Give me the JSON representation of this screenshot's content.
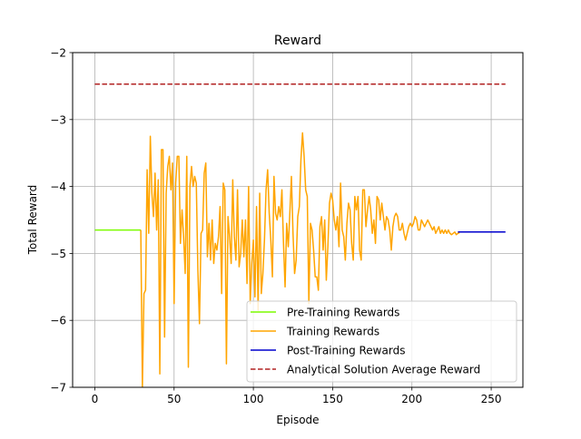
{
  "chart_data": {
    "type": "line",
    "title": "Reward",
    "xlabel": "Episode",
    "ylabel": "Total Reward",
    "xlim": [
      -14,
      270
    ],
    "ylim": [
      -7,
      -2
    ],
    "xticks": [
      0,
      50,
      100,
      150,
      200,
      250
    ],
    "yticks": [
      -2,
      -3,
      -4,
      -5,
      -6,
      -7
    ],
    "xtick_labels": [
      "0",
      "50",
      "100",
      "150",
      "200",
      "250"
    ],
    "ytick_labels": [
      "−2",
      "−3",
      "−4",
      "−5",
      "−6",
      "−7"
    ],
    "grid": true,
    "legend_position": "lower-right",
    "series": [
      {
        "name": "Pre-Training Rewards",
        "color": "#7cfc00",
        "style": "solid",
        "points": [
          [
            0,
            -4.65
          ],
          [
            29,
            -4.65
          ]
        ]
      },
      {
        "name": "Training Rewards",
        "color": "#ffa500",
        "style": "solid",
        "points": [
          [
            29,
            -4.65
          ],
          [
            30,
            -7.0
          ],
          [
            31,
            -5.6
          ],
          [
            32,
            -5.55
          ],
          [
            33,
            -3.75
          ],
          [
            34,
            -4.7
          ],
          [
            35,
            -3.25
          ],
          [
            36,
            -4.1
          ],
          [
            37,
            -4.45
          ],
          [
            38,
            -3.8
          ],
          [
            39,
            -4.65
          ],
          [
            40,
            -3.9
          ],
          [
            41,
            -6.8
          ],
          [
            42,
            -3.45
          ],
          [
            43,
            -3.45
          ],
          [
            44,
            -6.25
          ],
          [
            45,
            -4.1
          ],
          [
            46,
            -3.7
          ],
          [
            47,
            -3.55
          ],
          [
            48,
            -4.05
          ],
          [
            49,
            -3.65
          ],
          [
            50,
            -5.75
          ],
          [
            51,
            -3.95
          ],
          [
            52,
            -3.55
          ],
          [
            53,
            -3.55
          ],
          [
            54,
            -4.85
          ],
          [
            55,
            -4.35
          ],
          [
            56,
            -4.75
          ],
          [
            57,
            -5.3
          ],
          [
            58,
            -3.55
          ],
          [
            59,
            -6.7
          ],
          [
            60,
            -4.0
          ],
          [
            61,
            -3.7
          ],
          [
            62,
            -4.0
          ],
          [
            63,
            -3.85
          ],
          [
            64,
            -3.95
          ],
          [
            65,
            -5.25
          ],
          [
            66,
            -6.05
          ],
          [
            67,
            -4.7
          ],
          [
            68,
            -4.65
          ],
          [
            69,
            -3.8
          ],
          [
            70,
            -3.65
          ],
          [
            71,
            -5.05
          ],
          [
            72,
            -4.55
          ],
          [
            73,
            -5.1
          ],
          [
            74,
            -4.5
          ],
          [
            75,
            -5.15
          ],
          [
            76,
            -4.85
          ],
          [
            77,
            -4.95
          ],
          [
            78,
            -4.75
          ],
          [
            79,
            -4.3
          ],
          [
            80,
            -5.6
          ],
          [
            81,
            -3.95
          ],
          [
            82,
            -4.05
          ],
          [
            83,
            -6.65
          ],
          [
            84,
            -4.45
          ],
          [
            85,
            -4.75
          ],
          [
            86,
            -5.15
          ],
          [
            87,
            -3.9
          ],
          [
            88,
            -4.75
          ],
          [
            89,
            -5.1
          ],
          [
            90,
            -4.05
          ],
          [
            91,
            -5.2
          ],
          [
            92,
            -5.0
          ],
          [
            93,
            -4.5
          ],
          [
            94,
            -5.05
          ],
          [
            95,
            -4.5
          ],
          [
            96,
            -5.45
          ],
          [
            97,
            -4.0
          ],
          [
            98,
            -5.75
          ],
          [
            99,
            -5.15
          ],
          [
            100,
            -4.8
          ],
          [
            101,
            -5.65
          ],
          [
            102,
            -4.3
          ],
          [
            103,
            -5.85
          ],
          [
            104,
            -4.1
          ],
          [
            105,
            -5.6
          ],
          [
            106,
            -5.3
          ],
          [
            107,
            -4.8
          ],
          [
            108,
            -4.05
          ],
          [
            109,
            -3.75
          ],
          [
            110,
            -4.4
          ],
          [
            111,
            -4.8
          ],
          [
            112,
            -5.35
          ],
          [
            113,
            -3.85
          ],
          [
            114,
            -4.4
          ],
          [
            115,
            -4.5
          ],
          [
            116,
            -4.3
          ],
          [
            117,
            -4.45
          ],
          [
            118,
            -4.05
          ],
          [
            119,
            -4.85
          ],
          [
            120,
            -5.5
          ],
          [
            121,
            -4.55
          ],
          [
            122,
            -4.9
          ],
          [
            123,
            -4.4
          ],
          [
            124,
            -3.85
          ],
          [
            125,
            -4.7
          ],
          [
            126,
            -5.3
          ],
          [
            127,
            -5.1
          ],
          [
            128,
            -4.45
          ],
          [
            129,
            -4.3
          ],
          [
            130,
            -3.6
          ],
          [
            131,
            -3.2
          ],
          [
            132,
            -3.55
          ],
          [
            133,
            -4.05
          ],
          [
            134,
            -4.15
          ],
          [
            135,
            -5.75
          ],
          [
            136,
            -4.55
          ],
          [
            137,
            -4.65
          ],
          [
            138,
            -4.95
          ],
          [
            139,
            -5.35
          ],
          [
            140,
            -5.35
          ],
          [
            141,
            -5.55
          ],
          [
            142,
            -4.6
          ],
          [
            143,
            -4.45
          ],
          [
            144,
            -4.95
          ],
          [
            145,
            -4.5
          ],
          [
            146,
            -5.4
          ],
          [
            147,
            -4.9
          ],
          [
            148,
            -4.25
          ],
          [
            149,
            -4.1
          ],
          [
            150,
            -4.2
          ],
          [
            151,
            -4.5
          ],
          [
            152,
            -4.65
          ],
          [
            153,
            -4.45
          ],
          [
            154,
            -4.9
          ],
          [
            155,
            -3.95
          ],
          [
            156,
            -4.65
          ],
          [
            157,
            -4.75
          ],
          [
            158,
            -5.1
          ],
          [
            159,
            -4.55
          ],
          [
            160,
            -4.25
          ],
          [
            161,
            -4.35
          ],
          [
            162,
            -4.85
          ],
          [
            163,
            -5.1
          ],
          [
            164,
            -4.15
          ],
          [
            165,
            -4.35
          ],
          [
            166,
            -4.15
          ],
          [
            167,
            -4.95
          ],
          [
            168,
            -5.1
          ],
          [
            169,
            -4.05
          ],
          [
            170,
            -4.05
          ],
          [
            171,
            -4.6
          ],
          [
            172,
            -4.35
          ],
          [
            173,
            -4.15
          ],
          [
            174,
            -4.35
          ],
          [
            175,
            -4.7
          ],
          [
            176,
            -4.5
          ],
          [
            177,
            -4.85
          ],
          [
            178,
            -4.15
          ],
          [
            179,
            -4.2
          ],
          [
            180,
            -4.5
          ],
          [
            181,
            -4.25
          ],
          [
            182,
            -4.45
          ],
          [
            183,
            -4.65
          ],
          [
            184,
            -4.45
          ],
          [
            185,
            -4.5
          ],
          [
            186,
            -4.65
          ],
          [
            187,
            -4.95
          ],
          [
            188,
            -4.6
          ],
          [
            189,
            -4.45
          ],
          [
            190,
            -4.4
          ],
          [
            191,
            -4.45
          ],
          [
            192,
            -4.65
          ],
          [
            193,
            -4.65
          ],
          [
            194,
            -4.55
          ],
          [
            195,
            -4.7
          ],
          [
            196,
            -4.8
          ],
          [
            197,
            -4.7
          ],
          [
            198,
            -4.6
          ],
          [
            199,
            -4.55
          ],
          [
            200,
            -4.6
          ],
          [
            201,
            -4.55
          ],
          [
            202,
            -4.45
          ],
          [
            203,
            -4.5
          ],
          [
            204,
            -4.65
          ],
          [
            205,
            -4.65
          ],
          [
            206,
            -4.5
          ],
          [
            207,
            -4.55
          ],
          [
            208,
            -4.6
          ],
          [
            209,
            -4.55
          ],
          [
            210,
            -4.5
          ],
          [
            211,
            -4.55
          ],
          [
            212,
            -4.6
          ],
          [
            213,
            -4.65
          ],
          [
            214,
            -4.6
          ],
          [
            215,
            -4.7
          ],
          [
            216,
            -4.65
          ],
          [
            217,
            -4.6
          ],
          [
            218,
            -4.7
          ],
          [
            219,
            -4.65
          ],
          [
            220,
            -4.7
          ],
          [
            221,
            -4.65
          ],
          [
            222,
            -4.7
          ],
          [
            223,
            -4.65
          ],
          [
            224,
            -4.7
          ],
          [
            225,
            -4.72
          ],
          [
            226,
            -4.7
          ],
          [
            227,
            -4.68
          ],
          [
            228,
            -4.72
          ],
          [
            229,
            -4.7
          ],
          [
            230,
            -4.69
          ]
        ]
      },
      {
        "name": "Post-Training Rewards",
        "color": "#0000cd",
        "style": "solid",
        "points": [
          [
            229,
            -4.68
          ],
          [
            259,
            -4.68
          ]
        ]
      },
      {
        "name": "Analytical Solution Average Reward",
        "color": "#b22222",
        "style": "dashed",
        "points": [
          [
            0,
            -2.47
          ],
          [
            259,
            -2.47
          ]
        ]
      }
    ]
  }
}
